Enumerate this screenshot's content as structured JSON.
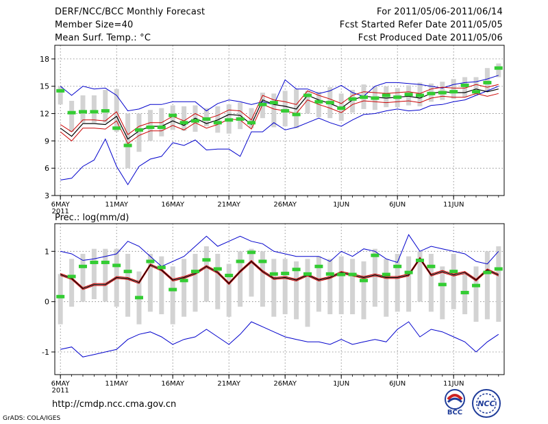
{
  "header": {
    "title": "DERF/NCC/BCC Monthly Forecast",
    "member_size": "Member Size=40",
    "variable1": "Mean Surf. Temp.: °C",
    "period": "For 2011/05/06-2011/06/14",
    "started": "Fcst Started Refer Date 2011/05/05",
    "produced": "Fcst Produced Date 2011/05/06"
  },
  "footer": {
    "url": "http://cmdp.ncc.cma.gov.cn",
    "credit": "GrADS: COLA/IGES",
    "logo1": "BCC",
    "logo2": "NCC"
  },
  "colors": {
    "envelope": "#0000cc",
    "spread": "#cc0000",
    "mean": "#000000",
    "median": "#33cc33",
    "box": "#d3d3d3"
  },
  "chart_data": [
    {
      "type": "box-ensemble",
      "title": "Mean Surf. Temp.: °C",
      "xlabel_ticks": [
        "6MAY",
        "11MAY",
        "16MAY",
        "21MAY",
        "26MAY",
        "1JUN",
        "6JUN",
        "11JUN"
      ],
      "year_label": "2011",
      "xlim": [
        1,
        40
      ],
      "ylim": [
        3,
        19.5
      ],
      "yticks": [
        3,
        6,
        9,
        12,
        15,
        18
      ],
      "days": [
        1,
        2,
        3,
        4,
        5,
        6,
        7,
        8,
        9,
        10,
        11,
        12,
        13,
        14,
        15,
        16,
        17,
        18,
        19,
        20,
        21,
        22,
        23,
        24,
        25,
        26,
        27,
        28,
        29,
        30,
        31,
        32,
        33,
        34,
        35,
        36,
        37,
        38,
        39,
        40
      ],
      "max": [
        15.0,
        14.0,
        15.0,
        14.7,
        14.8,
        14.0,
        12.3,
        12.5,
        13.0,
        13.0,
        13.3,
        13.3,
        13.3,
        12.3,
        13.1,
        13.5,
        13.3,
        13.0,
        13.3,
        13.0,
        15.7,
        14.7,
        14.7,
        14.2,
        14.5,
        15.1,
        14.3,
        13.9,
        15.0,
        15.4,
        15.4,
        15.3,
        15.2,
        15.0,
        14.8,
        15.2,
        15.4,
        15.5,
        15.8,
        16.2
      ],
      "plus_std": [
        10.8,
        10.0,
        11.3,
        11.3,
        11.2,
        12.2,
        9.7,
        10.6,
        11.0,
        11.0,
        11.7,
        11.2,
        12.0,
        11.4,
        11.8,
        12.4,
        12.3,
        11.3,
        14.0,
        13.5,
        13.3,
        13.0,
        14.5,
        14.0,
        13.6,
        13.1,
        14.0,
        14.4,
        14.3,
        14.2,
        14.3,
        14.4,
        14.2,
        14.7,
        14.9,
        14.8,
        14.8,
        15.2,
        14.9,
        15.2
      ],
      "mean": [
        10.4,
        9.5,
        10.9,
        10.9,
        10.8,
        11.7,
        9.2,
        10.1,
        10.6,
        10.6,
        11.2,
        10.7,
        11.5,
        10.9,
        11.3,
        11.9,
        11.8,
        10.8,
        13.5,
        13.0,
        12.8,
        12.5,
        14.0,
        13.5,
        13.1,
        12.6,
        13.5,
        13.9,
        13.8,
        13.7,
        13.8,
        13.9,
        13.7,
        14.2,
        14.4,
        14.3,
        14.3,
        14.7,
        14.4,
        14.7
      ],
      "minus_std": [
        10.0,
        9.0,
        10.4,
        10.4,
        10.3,
        11.2,
        8.7,
        9.6,
        10.1,
        10.1,
        10.7,
        10.2,
        11.0,
        10.4,
        10.8,
        11.4,
        11.3,
        10.3,
        13.0,
        12.5,
        12.3,
        12.0,
        13.5,
        13.0,
        12.6,
        12.1,
        13.0,
        13.4,
        13.3,
        13.2,
        13.3,
        13.4,
        13.2,
        13.7,
        13.9,
        13.8,
        13.8,
        14.2,
        13.9,
        14.2
      ],
      "min": [
        4.7,
        4.9,
        6.2,
        6.9,
        9.2,
        6.2,
        4.2,
        6.2,
        7.0,
        7.3,
        8.8,
        8.5,
        9.1,
        8.0,
        8.1,
        8.1,
        7.3,
        10.0,
        10.0,
        11.0,
        10.2,
        10.5,
        11.0,
        11.5,
        11.0,
        10.6,
        11.3,
        11.9,
        12.0,
        12.3,
        12.5,
        12.3,
        12.4,
        12.9,
        13.0,
        13.3,
        13.5,
        14.0,
        14.5,
        15.0
      ],
      "median": [
        14.5,
        12.1,
        12.2,
        12.2,
        12.3,
        10.4,
        8.5,
        10.2,
        10.5,
        10.5,
        11.8,
        11.0,
        11.2,
        11.4,
        11.0,
        11.3,
        11.4,
        11.0,
        13.0,
        13.2,
        12.3,
        11.9,
        14.0,
        13.3,
        13.2,
        12.6,
        13.6,
        13.8,
        13.7,
        14.0,
        13.8,
        14.1,
        14.0,
        14.2,
        14.3,
        14.4,
        15.1,
        14.4,
        15.4,
        17.0
      ],
      "box_low": [
        13.0,
        10.0,
        11.0,
        11.0,
        11.0,
        10.0,
        6.0,
        7.8,
        9.0,
        9.5,
        10.2,
        10.1,
        10.0,
        10.6,
        9.9,
        9.8,
        10.3,
        10.4,
        11.5,
        10.5,
        10.6,
        10.4,
        12.0,
        11.6,
        11.5,
        11.2,
        12.1,
        12.5,
        12.4,
        12.7,
        12.7,
        12.9,
        12.8,
        13.3,
        13.5,
        13.6,
        13.8,
        14.0,
        14.4,
        16.0
      ],
      "box_high": [
        15.0,
        13.4,
        14.0,
        14.0,
        14.6,
        14.7,
        12.0,
        12.0,
        12.4,
        12.6,
        12.9,
        12.8,
        12.9,
        12.6,
        12.8,
        13.0,
        13.2,
        12.6,
        14.3,
        14.2,
        14.5,
        14.7,
        14.5,
        14.4,
        14.9,
        14.2,
        14.6,
        15.2,
        15.0,
        15.0,
        14.8,
        15.1,
        15.4,
        15.3,
        15.5,
        15.8,
        16.0,
        16.0,
        17.0,
        17.5
      ]
    },
    {
      "type": "box-ensemble",
      "title": "Prec.: log(mm/d)",
      "xlabel_ticks": [
        "6MAY",
        "11MAY",
        "16MAY",
        "21MAY",
        "26MAY",
        "1JUN",
        "6JUN",
        "11JUN"
      ],
      "year_label": "2011",
      "xlim": [
        1,
        40
      ],
      "ylim": [
        -1.45,
        1.55
      ],
      "yticks": [
        -1,
        0,
        1
      ],
      "days": [
        1,
        2,
        3,
        4,
        5,
        6,
        7,
        8,
        9,
        10,
        11,
        12,
        13,
        14,
        15,
        16,
        17,
        18,
        19,
        20,
        21,
        22,
        23,
        24,
        25,
        26,
        27,
        28,
        29,
        30,
        31,
        32,
        33,
        34,
        35,
        36,
        37,
        38,
        39,
        40
      ],
      "max": [
        1.0,
        0.95,
        0.82,
        0.85,
        0.9,
        0.95,
        1.2,
        1.1,
        0.9,
        0.7,
        0.8,
        0.9,
        1.1,
        1.3,
        1.1,
        1.2,
        1.3,
        1.2,
        1.15,
        1.0,
        0.95,
        0.9,
        0.9,
        0.9,
        0.8,
        1.0,
        0.9,
        1.05,
        1.0,
        0.85,
        0.78,
        1.33,
        1.0,
        1.1,
        1.05,
        1.0,
        0.95,
        0.8,
        0.75,
        1.0
      ],
      "plus_std": [
        0.56,
        0.48,
        0.28,
        0.36,
        0.36,
        0.5,
        0.48,
        0.4,
        0.75,
        0.65,
        0.45,
        0.5,
        0.58,
        0.72,
        0.6,
        0.38,
        0.62,
        0.82,
        0.62,
        0.48,
        0.5,
        0.45,
        0.55,
        0.45,
        0.5,
        0.6,
        0.55,
        0.5,
        0.55,
        0.5,
        0.5,
        0.55,
        0.88,
        0.55,
        0.62,
        0.55,
        0.6,
        0.45,
        0.65,
        0.55
      ],
      "mean": [
        0.54,
        0.46,
        0.26,
        0.34,
        0.34,
        0.48,
        0.46,
        0.38,
        0.73,
        0.63,
        0.43,
        0.48,
        0.56,
        0.7,
        0.58,
        0.36,
        0.6,
        0.8,
        0.6,
        0.46,
        0.48,
        0.43,
        0.53,
        0.43,
        0.48,
        0.58,
        0.53,
        0.48,
        0.53,
        0.48,
        0.48,
        0.53,
        0.86,
        0.53,
        0.6,
        0.53,
        0.58,
        0.43,
        0.63,
        0.53
      ],
      "minus_std": [
        0.52,
        0.44,
        0.24,
        0.32,
        0.32,
        0.46,
        0.44,
        0.36,
        0.71,
        0.61,
        0.41,
        0.46,
        0.54,
        0.68,
        0.56,
        0.34,
        0.58,
        0.78,
        0.58,
        0.44,
        0.46,
        0.41,
        0.51,
        0.41,
        0.46,
        0.56,
        0.51,
        0.46,
        0.51,
        0.46,
        0.46,
        0.51,
        0.84,
        0.51,
        0.58,
        0.51,
        0.56,
        0.41,
        0.61,
        0.51
      ],
      "min": [
        -0.95,
        -0.9,
        -1.1,
        -1.05,
        -1.0,
        -0.95,
        -0.75,
        -0.65,
        -0.6,
        -0.7,
        -0.85,
        -0.75,
        -0.7,
        -0.55,
        -0.7,
        -0.85,
        -0.65,
        -0.4,
        -0.5,
        -0.6,
        -0.7,
        -0.75,
        -0.8,
        -0.8,
        -0.85,
        -0.75,
        -0.85,
        -0.8,
        -0.75,
        -0.8,
        -0.55,
        -0.4,
        -0.7,
        -0.55,
        -0.6,
        -0.7,
        -0.8,
        -1.0,
        -0.8,
        -0.65
      ],
      "median": [
        0.1,
        0.5,
        0.7,
        0.78,
        0.78,
        0.72,
        0.6,
        0.08,
        0.8,
        0.68,
        0.24,
        0.42,
        0.6,
        0.83,
        0.65,
        0.52,
        0.8,
        0.98,
        0.8,
        0.55,
        0.56,
        0.64,
        0.55,
        0.7,
        0.55,
        0.54,
        0.54,
        0.42,
        0.92,
        0.54,
        0.7,
        0.58,
        0.82,
        0.7,
        0.34,
        0.6,
        0.18,
        0.32,
        0.58,
        0.65
      ],
      "box_low": [
        -0.45,
        -0.1,
        0.0,
        0.05,
        0.0,
        -0.1,
        -0.3,
        -0.45,
        -0.2,
        -0.25,
        -0.45,
        -0.3,
        -0.2,
        0.0,
        -0.15,
        -0.3,
        -0.1,
        0.1,
        -0.1,
        -0.3,
        -0.25,
        -0.35,
        -0.5,
        -0.2,
        -0.25,
        -0.25,
        -0.25,
        -0.35,
        -0.1,
        -0.3,
        -0.2,
        -0.2,
        0.0,
        -0.2,
        -0.35,
        -0.15,
        -0.25,
        -0.4,
        -0.35,
        -0.4
      ],
      "box_high": [
        0.55,
        0.85,
        0.95,
        1.05,
        1.05,
        1.05,
        0.95,
        0.6,
        0.95,
        0.9,
        0.7,
        0.85,
        0.95,
        1.1,
        0.95,
        0.75,
        1.0,
        1.05,
        1.0,
        0.85,
        0.85,
        0.8,
        0.85,
        0.9,
        0.85,
        0.9,
        0.85,
        0.8,
        1.05,
        0.85,
        0.95,
        0.9,
        1.0,
        0.95,
        0.7,
        0.95,
        0.55,
        0.7,
        1.0,
        1.1
      ]
    }
  ]
}
